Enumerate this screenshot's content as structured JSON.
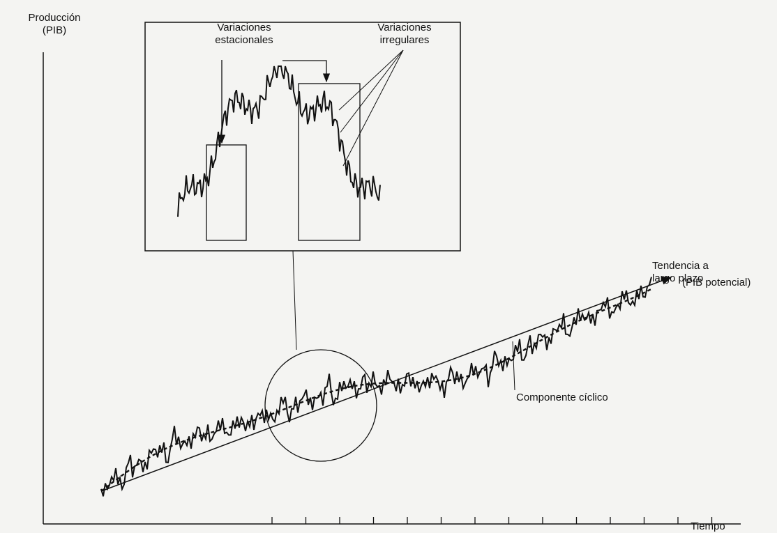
{
  "y_axis_label": {
    "line1": "Producción",
    "line2": "(PIB)"
  },
  "x_axis_label": "Tiempo",
  "inset": {
    "seasonal_label": {
      "line1": "Variaciones",
      "line2": "estacionales"
    },
    "irregular_label": {
      "line1": "Variaciones",
      "line2": "irregulares"
    }
  },
  "trend_label": {
    "line1": "Tendencia a",
    "line2": "largo plazo",
    "line3": "(PIB potencial)"
  },
  "cycle_label": "Componente cíclico"
}
